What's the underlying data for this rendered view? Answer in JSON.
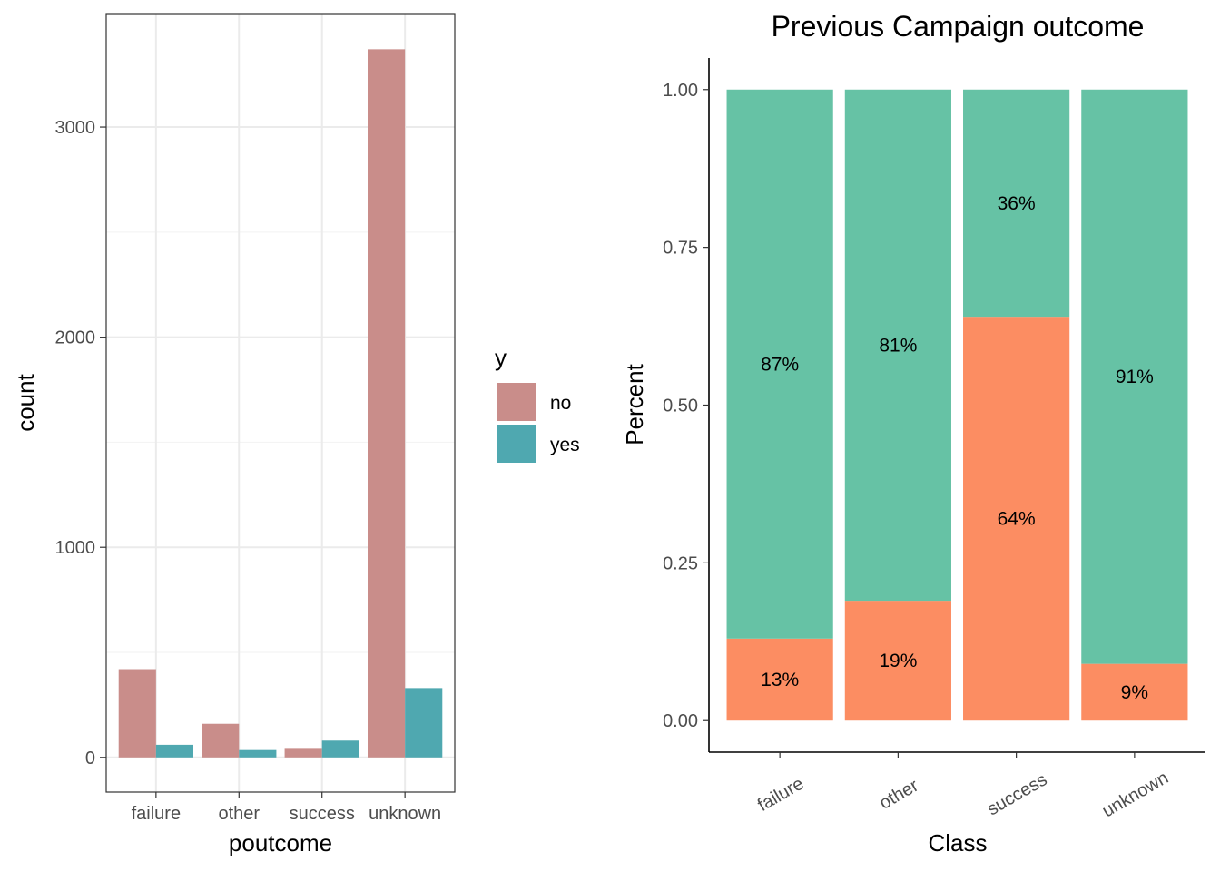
{
  "chart_data": [
    {
      "type": "bar",
      "title": "",
      "xlabel": "poutcome",
      "ylabel": "count",
      "categories": [
        "failure",
        "other",
        "success",
        "unknown"
      ],
      "series": [
        {
          "name": "no",
          "values": [
            420,
            160,
            45,
            3370
          ]
        },
        {
          "name": "yes",
          "values": [
            60,
            35,
            80,
            330
          ]
        }
      ],
      "yticks": [
        0,
        1000,
        2000,
        3000
      ],
      "ytick_labels": [
        "0",
        "1000",
        "2000",
        "3000"
      ],
      "ylim": [
        -165,
        3540
      ],
      "grid": true,
      "colors": {
        "no": "#c98d8a",
        "yes": "#4fa8b0"
      },
      "legend": {
        "title": "y",
        "placement": "right",
        "entries": [
          "no",
          "yes"
        ]
      }
    },
    {
      "type": "bar",
      "stacked": true,
      "title": "Previous Campaign outcome",
      "xlabel": "Class",
      "ylabel": "Percent",
      "categories": [
        "failure",
        "other",
        "success",
        "unknown"
      ],
      "series": [
        {
          "values": [
            0.13,
            0.19,
            0.64,
            0.09
          ],
          "labels": [
            "13%",
            "19%",
            "64%",
            "9%"
          ]
        },
        {
          "values": [
            0.87,
            0.81,
            0.36,
            0.91
          ],
          "labels": [
            "87%",
            "81%",
            "36%",
            "91%"
          ]
        }
      ],
      "yticks": [
        0,
        0.25,
        0.5,
        0.75,
        1
      ],
      "ytick_labels": [
        "0.00",
        "0.25",
        "0.50",
        "0.75",
        "1.00"
      ],
      "ylim": [
        -0.05,
        1.05
      ],
      "grid": false,
      "colors": {
        "bottom": "#fc8d62",
        "top": "#66c2a5"
      },
      "xtick_rotation": -30
    }
  ]
}
